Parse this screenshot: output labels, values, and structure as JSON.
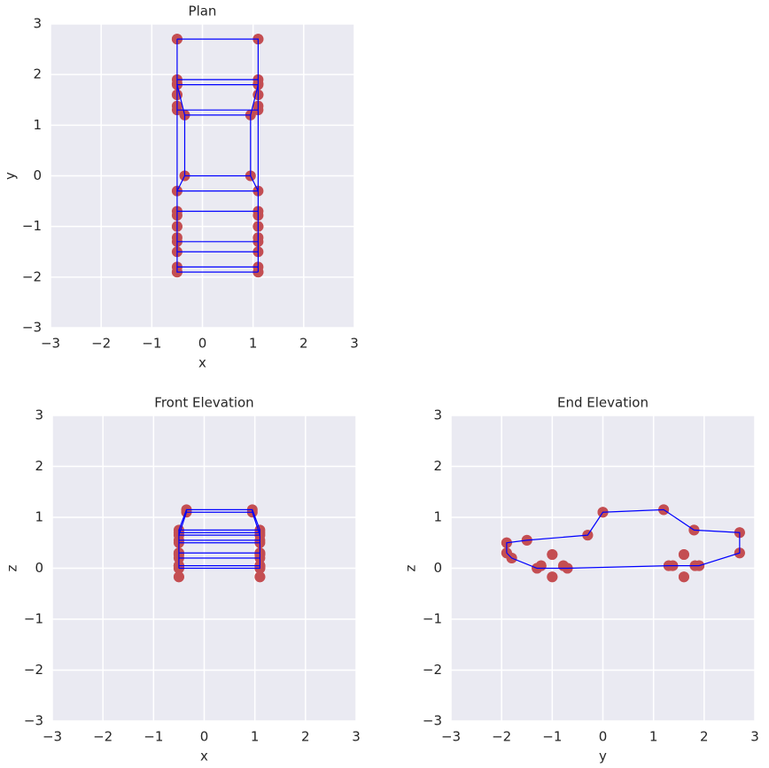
{
  "chart_data": [
    {
      "type": "scatter",
      "title": "Plan",
      "xlabel": "x",
      "ylabel": "y",
      "grid": true,
      "xlim": [
        -3,
        3
      ],
      "ylim": [
        -3,
        3
      ],
      "xticks": [
        {
          "value": -3,
          "label": "−3"
        },
        {
          "value": -2,
          "label": "−2"
        },
        {
          "value": -1,
          "label": "−1"
        },
        0,
        1,
        2,
        3
      ],
      "yticks": [
        {
          "value": -3,
          "label": "−3"
        },
        {
          "value": -2,
          "label": "−2"
        },
        {
          "value": -1,
          "label": "−1"
        },
        0,
        1,
        2,
        3
      ],
      "series": [
        {
          "color": "#c44e52",
          "x": [
            -0.5,
            -0.5,
            -0.5,
            -0.5,
            -0.35,
            -0.35,
            -0.5,
            -0.5,
            -0.5,
            -0.5,
            -0.5,
            -0.5,
            -0.5,
            -0.5,
            1.1,
            1.1,
            1.1,
            1.1,
            0.95,
            0.95,
            1.1,
            1.1,
            1.1,
            1.1,
            1.1,
            1.1,
            1.1,
            1.1,
            -0.5,
            -0.5,
            -0.5,
            -0.5,
            -0.5,
            -0.5,
            -0.5,
            -0.5,
            1.1,
            1.1,
            1.1,
            1.1,
            1.1,
            1.1,
            1.1,
            1.1
          ],
          "values": [
            -1.9,
            -1.9,
            -1.5,
            -0.3,
            0.0,
            1.2,
            1.8,
            2.7,
            2.7,
            1.9,
            1.3,
            -0.7,
            -1.3,
            -1.8,
            -1.9,
            -1.9,
            -1.5,
            -0.3,
            0.0,
            1.2,
            1.8,
            2.7,
            2.7,
            1.9,
            1.3,
            -0.7,
            -1.3,
            -1.8,
            -1.0,
            -1.0,
            -1.22,
            -0.78,
            1.6,
            1.6,
            1.38,
            1.82,
            -1.0,
            -1.0,
            -1.22,
            -0.78,
            1.6,
            1.6,
            1.38,
            1.82
          ]
        },
        {
          "color": "#0000ff",
          "x": [
            -0.5,
            -0.5,
            -0.5,
            -0.5,
            -0.35,
            -0.35,
            -0.5,
            -0.5,
            -0.5,
            -0.5,
            -0.5,
            -0.5,
            -0.5,
            -0.5,
            -0.5,
            null,
            1.1,
            1.1,
            1.1,
            1.1,
            0.95,
            0.95,
            1.1,
            1.1,
            1.1,
            1.1,
            1.1,
            1.1,
            1.1,
            1.1,
            1.1,
            null,
            -0.5,
            1.1,
            1.1,
            -0.5,
            -0.5,
            1.1,
            1.1,
            -0.5,
            -0.35,
            0.95,
            0.95,
            -0.35,
            -0.5,
            1.1,
            1.1,
            -0.5,
            -0.5,
            1.1,
            1.1,
            -0.5,
            -0.5,
            1.1,
            1.1,
            -0.5,
            -0.5,
            1.1,
            1.1,
            -0.5
          ],
          "values": [
            -1.9,
            -1.9,
            -1.5,
            -0.3,
            0.0,
            1.2,
            1.8,
            2.7,
            2.7,
            1.9,
            1.3,
            -0.7,
            -1.3,
            -1.8,
            -1.9,
            null,
            -1.9,
            -1.9,
            -1.5,
            -0.3,
            0.0,
            1.2,
            1.8,
            2.7,
            2.7,
            1.9,
            1.3,
            -0.7,
            -1.3,
            -1.8,
            -1.9,
            null,
            -1.9,
            -1.9,
            -1.9,
            -1.9,
            -1.5,
            -1.5,
            -0.3,
            -0.3,
            0.0,
            0.0,
            1.2,
            1.2,
            1.8,
            1.8,
            2.7,
            2.7,
            2.7,
            2.7,
            1.9,
            1.9,
            1.3,
            1.3,
            -0.7,
            -0.7,
            -1.3,
            -1.3,
            -1.8,
            -1.8
          ]
        }
      ]
    },
    {
      "type": "scatter",
      "title": "Front Elevation",
      "xlabel": "x",
      "ylabel": "z",
      "grid": true,
      "xlim": [
        -3,
        3
      ],
      "ylim": [
        -3,
        3
      ],
      "xticks": [
        {
          "value": -3,
          "label": "−3"
        },
        {
          "value": -2,
          "label": "−2"
        },
        {
          "value": -1,
          "label": "−1"
        },
        0,
        1,
        2,
        3
      ],
      "yticks": [
        {
          "value": -3,
          "label": "−3"
        },
        {
          "value": -2,
          "label": "−2"
        },
        {
          "value": -1,
          "label": "−1"
        },
        0,
        1,
        2,
        3
      ],
      "series": [
        {
          "color": "#c44e52",
          "x": [
            -0.5,
            -0.5,
            -0.5,
            -0.5,
            -0.35,
            -0.35,
            -0.5,
            -0.5,
            -0.5,
            -0.5,
            -0.5,
            -0.5,
            -0.5,
            -0.5,
            1.1,
            1.1,
            1.1,
            1.1,
            0.95,
            0.95,
            1.1,
            1.1,
            1.1,
            1.1,
            1.1,
            1.1,
            1.1,
            1.1,
            -0.5,
            -0.5,
            -0.5,
            -0.5,
            -0.5,
            -0.5,
            -0.5,
            -0.5,
            1.1,
            1.1,
            1.1,
            1.1,
            1.1,
            1.1,
            1.1,
            1.1
          ],
          "values": [
            0.3,
            0.5,
            0.55,
            0.65,
            1.1,
            1.15,
            0.75,
            0.7,
            0.3,
            0.05,
            0.05,
            0.0,
            0.0,
            0.2,
            0.3,
            0.5,
            0.55,
            0.65,
            1.1,
            1.15,
            0.75,
            0.7,
            0.3,
            0.05,
            0.05,
            0.0,
            0.0,
            0.2,
            0.27,
            -0.17,
            0.05,
            0.05,
            0.27,
            -0.17,
            0.05,
            0.05,
            0.27,
            -0.17,
            0.05,
            0.05,
            0.27,
            -0.17,
            0.05,
            0.05
          ]
        },
        {
          "color": "#0000ff",
          "x": [
            -0.5,
            -0.5,
            -0.5,
            -0.5,
            -0.35,
            -0.35,
            -0.5,
            -0.5,
            -0.5,
            -0.5,
            -0.5,
            -0.5,
            -0.5,
            -0.5,
            -0.5,
            null,
            1.1,
            1.1,
            1.1,
            1.1,
            0.95,
            0.95,
            1.1,
            1.1,
            1.1,
            1.1,
            1.1,
            1.1,
            1.1,
            1.1,
            1.1,
            null,
            -0.5,
            1.1,
            1.1,
            -0.5,
            -0.5,
            1.1,
            1.1,
            -0.5,
            -0.35,
            0.95,
            0.95,
            -0.35,
            -0.5,
            1.1,
            1.1,
            -0.5,
            -0.5,
            1.1,
            1.1,
            -0.5,
            -0.5,
            1.1,
            1.1,
            -0.5,
            -0.5,
            1.1,
            1.1,
            -0.5
          ],
          "values": [
            0.3,
            0.5,
            0.55,
            0.65,
            1.1,
            1.15,
            0.75,
            0.7,
            0.3,
            0.05,
            0.05,
            0.0,
            0.0,
            0.2,
            0.3,
            null,
            0.3,
            0.5,
            0.55,
            0.65,
            1.1,
            1.15,
            0.75,
            0.7,
            0.3,
            0.05,
            0.05,
            0.0,
            0.0,
            0.2,
            0.3,
            null,
            0.3,
            0.3,
            0.5,
            0.5,
            0.55,
            0.55,
            0.65,
            0.65,
            1.1,
            1.1,
            1.15,
            1.15,
            0.75,
            0.75,
            0.7,
            0.7,
            0.3,
            0.3,
            0.05,
            0.05,
            0.05,
            0.05,
            0.0,
            0.0,
            0.0,
            0.0,
            0.2,
            0.2
          ]
        }
      ]
    },
    {
      "type": "scatter",
      "title": "End Elevation",
      "xlabel": "y",
      "ylabel": "z",
      "grid": true,
      "xlim": [
        -3,
        3
      ],
      "ylim": [
        -3,
        3
      ],
      "xticks": [
        {
          "value": -3,
          "label": "−3"
        },
        {
          "value": -2,
          "label": "−2"
        },
        {
          "value": -1,
          "label": "−1"
        },
        0,
        1,
        2,
        3
      ],
      "yticks": [
        {
          "value": -3,
          "label": "−3"
        },
        {
          "value": -2,
          "label": "−2"
        },
        {
          "value": -1,
          "label": "−1"
        },
        0,
        1,
        2,
        3
      ],
      "series": [
        {
          "color": "#c44e52",
          "x": [
            -1.9,
            -1.9,
            -1.5,
            -0.3,
            0.0,
            1.2,
            1.8,
            2.7,
            2.7,
            1.9,
            1.3,
            -0.7,
            -1.3,
            -1.8,
            -1.9,
            -1.9,
            -1.5,
            -0.3,
            0.0,
            1.2,
            1.8,
            2.7,
            2.7,
            1.9,
            1.3,
            -0.7,
            -1.3,
            -1.8,
            -1.0,
            -1.0,
            -1.22,
            -0.78,
            1.6,
            1.6,
            1.38,
            1.82,
            -1.0,
            -1.0,
            -1.22,
            -0.78,
            1.6,
            1.6,
            1.38,
            1.82
          ],
          "values": [
            0.3,
            0.5,
            0.55,
            0.65,
            1.1,
            1.15,
            0.75,
            0.7,
            0.3,
            0.05,
            0.05,
            0.0,
            0.0,
            0.2,
            0.3,
            0.5,
            0.55,
            0.65,
            1.1,
            1.15,
            0.75,
            0.7,
            0.3,
            0.05,
            0.05,
            0.0,
            0.0,
            0.2,
            0.27,
            -0.17,
            0.05,
            0.05,
            0.27,
            -0.17,
            0.05,
            0.05,
            0.27,
            -0.17,
            0.05,
            0.05,
            0.27,
            -0.17,
            0.05,
            0.05
          ]
        },
        {
          "color": "#0000ff",
          "x": [
            -1.9,
            -1.9,
            -1.5,
            -0.3,
            0.0,
            1.2,
            1.8,
            2.7,
            2.7,
            1.9,
            1.3,
            -0.7,
            -1.3,
            -1.8,
            -1.9,
            null,
            -1.9,
            -1.9,
            -1.5,
            -0.3,
            0.0,
            1.2,
            1.8,
            2.7,
            2.7,
            1.9,
            1.3,
            -0.7,
            -1.3,
            -1.8,
            -1.9,
            null,
            -1.9,
            -1.9,
            -1.9,
            -1.9,
            -1.5,
            -1.5,
            -0.3,
            -0.3,
            0.0,
            0.0,
            1.2,
            1.2,
            1.8,
            1.8,
            2.7,
            2.7,
            2.7,
            2.7,
            1.9,
            1.9,
            1.3,
            1.3,
            -0.7,
            -0.7,
            -1.3,
            -1.3,
            -1.8,
            -1.8
          ],
          "values": [
            0.3,
            0.5,
            0.55,
            0.65,
            1.1,
            1.15,
            0.75,
            0.7,
            0.3,
            0.05,
            0.05,
            0.0,
            0.0,
            0.2,
            0.3,
            null,
            0.3,
            0.5,
            0.55,
            0.65,
            1.1,
            1.15,
            0.75,
            0.7,
            0.3,
            0.05,
            0.05,
            0.0,
            0.0,
            0.2,
            0.3,
            null,
            0.3,
            0.3,
            0.5,
            0.5,
            0.55,
            0.55,
            0.65,
            0.65,
            1.1,
            1.1,
            1.15,
            1.15,
            0.75,
            0.75,
            0.7,
            0.7,
            0.3,
            0.3,
            0.05,
            0.05,
            0.05,
            0.05,
            0.0,
            0.0,
            0.0,
            0.0,
            0.2,
            0.2
          ]
        }
      ]
    }
  ]
}
